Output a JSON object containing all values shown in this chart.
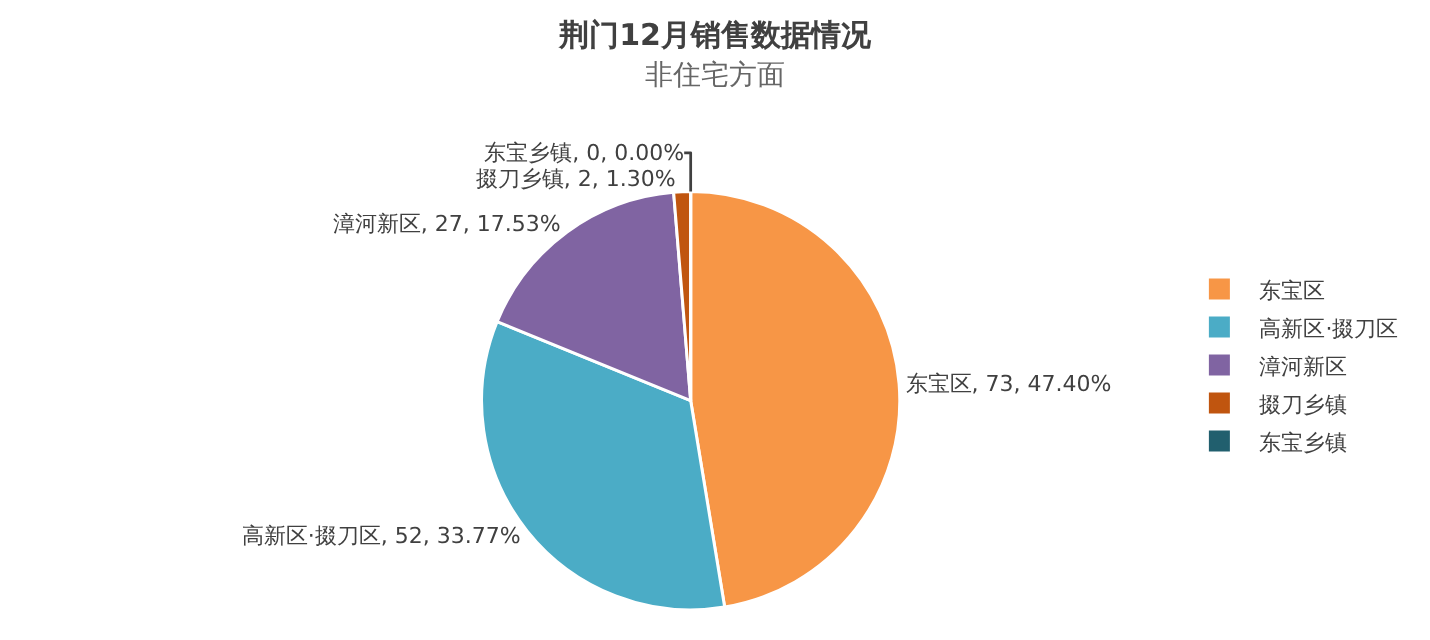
{
  "chart_data": {
    "type": "pie",
    "title": "荆门12月销售数据情况",
    "subtitle": "非住宅方面",
    "categories": [
      "东宝区",
      "高新区·掇刀区",
      "漳河新区",
      "掇刀乡镇",
      "东宝乡镇"
    ],
    "values": [
      73,
      52,
      27,
      2,
      0
    ],
    "colors": [
      "#f79646",
      "#4bacc6",
      "#8064a2",
      "#c0550f",
      "#215f6e"
    ],
    "value_labels": [
      "东宝区, 73, 47.40%",
      "高新区·掇刀区, 52, 33.77%",
      "漳河新区, 27, 17.53%",
      "掇刀乡镇, 2, 1.30%",
      "东宝乡镇, 0, 0.00%"
    ],
    "legend": "right"
  }
}
